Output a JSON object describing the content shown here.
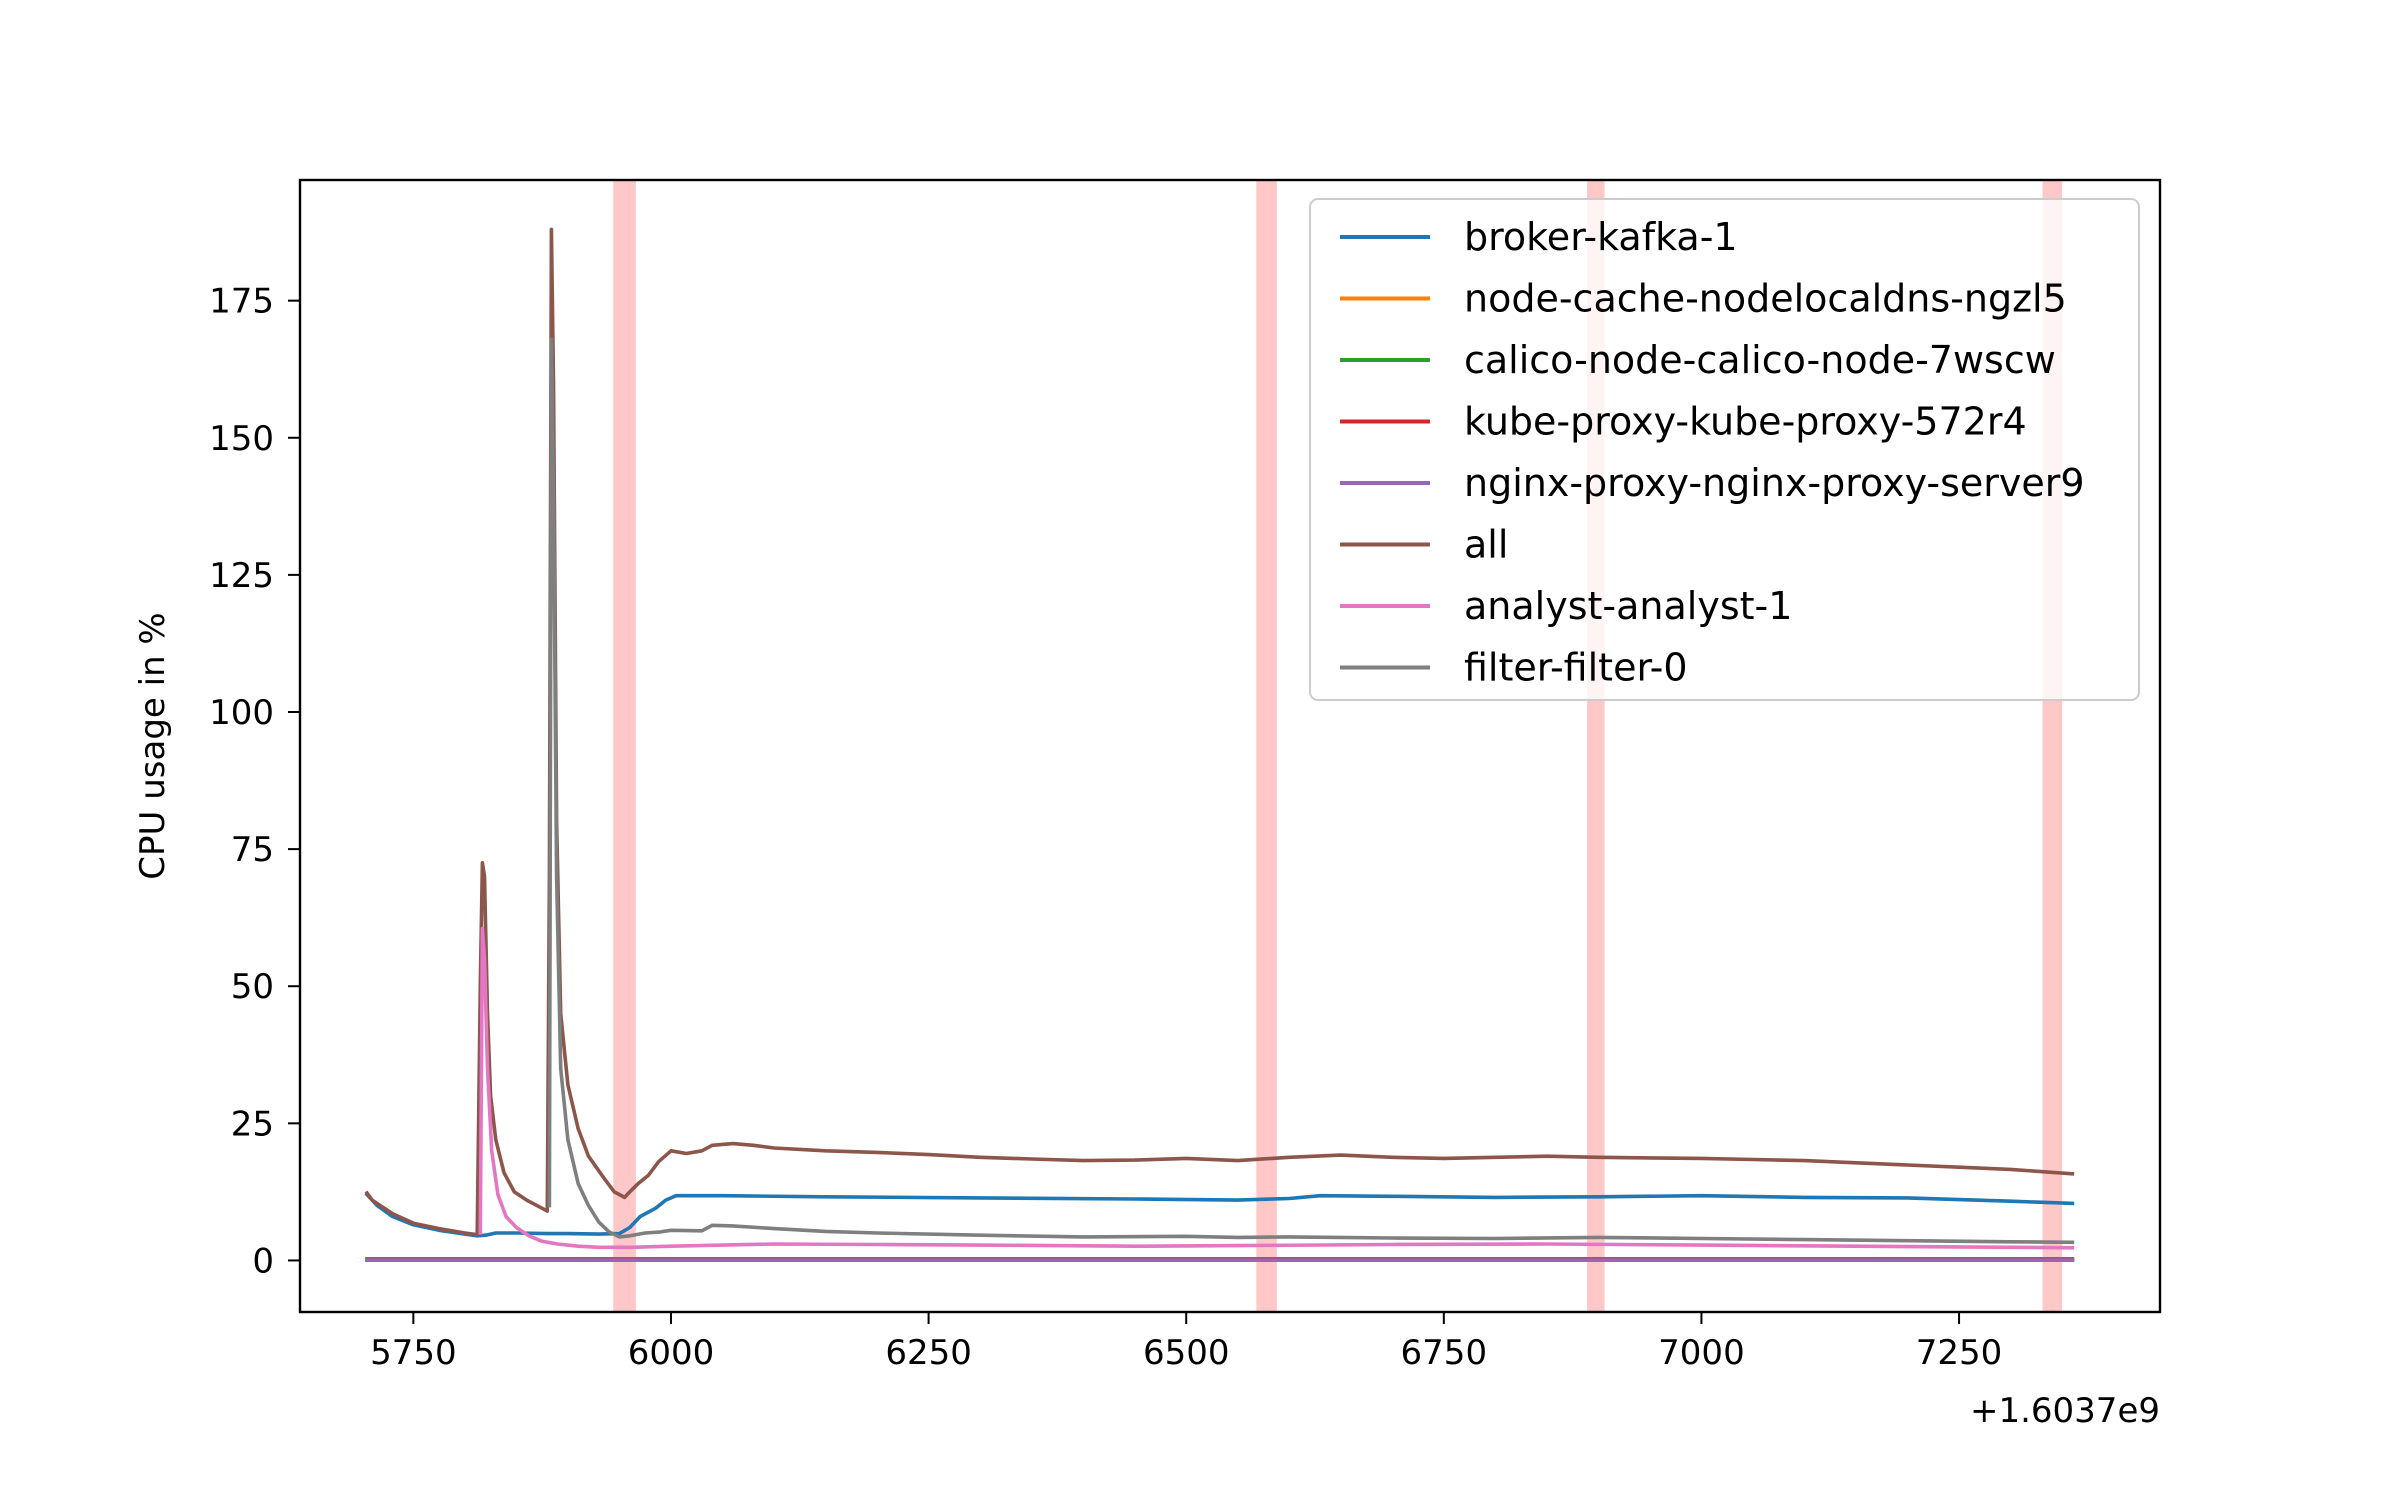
{
  "chart_data": {
    "type": "line",
    "title": "",
    "xlabel": "",
    "ylabel": "CPU usage in %",
    "x_offset_label": "+1.6037e9",
    "xlim": [
      5640,
      7445
    ],
    "ylim": [
      -9.4,
      197
    ],
    "xticks": [
      5750,
      6000,
      6250,
      6500,
      6750,
      7000,
      7250
    ],
    "yticks": [
      0,
      25,
      50,
      75,
      100,
      125,
      150,
      175
    ],
    "legend_position": "top-right",
    "grid": false,
    "highlight_bands": [
      {
        "x0": 5944,
        "x1": 5966,
        "color": "#ffb6b6"
      },
      {
        "x0": 6568,
        "x1": 6588,
        "color": "#ffb6b6"
      },
      {
        "x0": 6889,
        "x1": 6906,
        "color": "#ffb6b6"
      },
      {
        "x0": 7331,
        "x1": 7350,
        "color": "#ffb6b6"
      }
    ],
    "series": [
      {
        "name": "broker-kafka-1",
        "color": "#1f77b4",
        "points": [
          [
            5705,
            12
          ],
          [
            5715,
            10
          ],
          [
            5730,
            8
          ],
          [
            5750,
            6.5
          ],
          [
            5775,
            5.5
          ],
          [
            5800,
            4.8
          ],
          [
            5812,
            4.5
          ],
          [
            5820,
            4.6
          ],
          [
            5830,
            5
          ],
          [
            5850,
            5
          ],
          [
            5880,
            4.9
          ],
          [
            5900,
            4.9
          ],
          [
            5930,
            4.8
          ],
          [
            5950,
            4.9
          ],
          [
            5960,
            6
          ],
          [
            5970,
            8
          ],
          [
            5985,
            9.5
          ],
          [
            5995,
            11
          ],
          [
            6005,
            11.8
          ],
          [
            6050,
            11.8
          ],
          [
            6150,
            11.6
          ],
          [
            6300,
            11.4
          ],
          [
            6450,
            11.2
          ],
          [
            6550,
            11
          ],
          [
            6600,
            11.3
          ],
          [
            6630,
            11.8
          ],
          [
            6700,
            11.7
          ],
          [
            6800,
            11.5
          ],
          [
            6900,
            11.6
          ],
          [
            7000,
            11.8
          ],
          [
            7100,
            11.5
          ],
          [
            7200,
            11.4
          ],
          [
            7300,
            10.8
          ],
          [
            7360,
            10.4
          ]
        ]
      },
      {
        "name": "node-cache-nodelocaldns-ngzl5",
        "color": "#ff7f0e",
        "points": [
          [
            5705,
            0.2
          ],
          [
            6000,
            0.2
          ],
          [
            6500,
            0.2
          ],
          [
            7000,
            0.2
          ],
          [
            7360,
            0.2
          ]
        ]
      },
      {
        "name": "calico-node-calico-node-7wscw",
        "color": "#2ca02c",
        "points": [
          [
            5705,
            0.3
          ],
          [
            6000,
            0.3
          ],
          [
            6500,
            0.3
          ],
          [
            7000,
            0.3
          ],
          [
            7360,
            0.3
          ]
        ]
      },
      {
        "name": "kube-proxy-kube-proxy-572r4",
        "color": "#d62728",
        "points": [
          [
            5705,
            0.1
          ],
          [
            6000,
            0.1
          ],
          [
            6500,
            0.1
          ],
          [
            7000,
            0.1
          ],
          [
            7360,
            0.1
          ]
        ]
      },
      {
        "name": "nginx-proxy-nginx-proxy-server9",
        "color": "#9467bd",
        "points": [
          [
            5705,
            0.05
          ],
          [
            6000,
            0.05
          ],
          [
            6500,
            0.05
          ],
          [
            7000,
            0.05
          ],
          [
            7360,
            0.05
          ]
        ]
      },
      {
        "name": "all",
        "color": "#8c564b",
        "points": [
          [
            5705,
            12.3
          ],
          [
            5710,
            11
          ],
          [
            5730,
            8.5
          ],
          [
            5750,
            6.8
          ],
          [
            5775,
            5.8
          ],
          [
            5800,
            5
          ],
          [
            5812,
            4.7
          ],
          [
            5815,
            50
          ],
          [
            5817,
            72.5
          ],
          [
            5819,
            70
          ],
          [
            5822,
            45
          ],
          [
            5825,
            30
          ],
          [
            5830,
            22
          ],
          [
            5838,
            16
          ],
          [
            5848,
            12.5
          ],
          [
            5860,
            11
          ],
          [
            5872,
            9.8
          ],
          [
            5880,
            9
          ],
          [
            5882,
            70
          ],
          [
            5884,
            188
          ],
          [
            5886,
            160
          ],
          [
            5889,
            80
          ],
          [
            5893,
            45
          ],
          [
            5900,
            32
          ],
          [
            5910,
            24
          ],
          [
            5920,
            19
          ],
          [
            5935,
            15
          ],
          [
            5945,
            12.5
          ],
          [
            5955,
            11.5
          ],
          [
            5960,
            12.5
          ],
          [
            5968,
            14
          ],
          [
            5978,
            15.5
          ],
          [
            5988,
            18
          ],
          [
            6000,
            20
          ],
          [
            6015,
            19.5
          ],
          [
            6030,
            20
          ],
          [
            6040,
            21
          ],
          [
            6060,
            21.3
          ],
          [
            6080,
            21
          ],
          [
            6100,
            20.5
          ],
          [
            6150,
            20
          ],
          [
            6200,
            19.7
          ],
          [
            6250,
            19.3
          ],
          [
            6300,
            18.8
          ],
          [
            6350,
            18.5
          ],
          [
            6400,
            18.2
          ],
          [
            6450,
            18.3
          ],
          [
            6500,
            18.6
          ],
          [
            6550,
            18.2
          ],
          [
            6600,
            18.8
          ],
          [
            6650,
            19.2
          ],
          [
            6700,
            18.8
          ],
          [
            6750,
            18.6
          ],
          [
            6800,
            18.8
          ],
          [
            6850,
            19
          ],
          [
            6900,
            18.8
          ],
          [
            6950,
            18.7
          ],
          [
            7000,
            18.6
          ],
          [
            7050,
            18.4
          ],
          [
            7100,
            18.2
          ],
          [
            7150,
            17.8
          ],
          [
            7200,
            17.4
          ],
          [
            7250,
            17
          ],
          [
            7300,
            16.6
          ],
          [
            7360,
            15.8
          ]
        ]
      },
      {
        "name": "analyst-analyst-1",
        "color": "#e377c2",
        "points": [
          [
            5815,
            5
          ],
          [
            5817,
            60.5
          ],
          [
            5819,
            55
          ],
          [
            5822,
            35
          ],
          [
            5826,
            20
          ],
          [
            5832,
            12
          ],
          [
            5840,
            8
          ],
          [
            5850,
            6
          ],
          [
            5862,
            4.5
          ],
          [
            5875,
            3.5
          ],
          [
            5890,
            3
          ],
          [
            5910,
            2.6
          ],
          [
            5930,
            2.4
          ],
          [
            5960,
            2.4
          ],
          [
            6000,
            2.6
          ],
          [
            6050,
            2.8
          ],
          [
            6100,
            3
          ],
          [
            6200,
            2.9
          ],
          [
            6300,
            2.8
          ],
          [
            6450,
            2.6
          ],
          [
            6550,
            2.7
          ],
          [
            6700,
            2.9
          ],
          [
            6850,
            3
          ],
          [
            7000,
            2.8
          ],
          [
            7150,
            2.6
          ],
          [
            7300,
            2.4
          ],
          [
            7360,
            2.3
          ]
        ]
      },
      {
        "name": "filter-filter-0",
        "color": "#7f7f7f",
        "points": [
          [
            5882,
            10
          ],
          [
            5884,
            168
          ],
          [
            5886,
            140
          ],
          [
            5889,
            70
          ],
          [
            5893,
            35
          ],
          [
            5900,
            22
          ],
          [
            5910,
            14
          ],
          [
            5920,
            10
          ],
          [
            5930,
            7
          ],
          [
            5940,
            5.2
          ],
          [
            5950,
            4.3
          ],
          [
            5960,
            4.5
          ],
          [
            5975,
            5
          ],
          [
            5990,
            5.2
          ],
          [
            6000,
            5.5
          ],
          [
            6030,
            5.4
          ],
          [
            6040,
            6.4
          ],
          [
            6060,
            6.3
          ],
          [
            6100,
            5.8
          ],
          [
            6150,
            5.3
          ],
          [
            6200,
            5
          ],
          [
            6300,
            4.6
          ],
          [
            6400,
            4.3
          ],
          [
            6500,
            4.4
          ],
          [
            6550,
            4.2
          ],
          [
            6600,
            4.3
          ],
          [
            6700,
            4.1
          ],
          [
            6800,
            4
          ],
          [
            6900,
            4.2
          ],
          [
            7000,
            4
          ],
          [
            7100,
            3.8
          ],
          [
            7200,
            3.6
          ],
          [
            7300,
            3.4
          ],
          [
            7360,
            3.3
          ]
        ]
      }
    ]
  }
}
